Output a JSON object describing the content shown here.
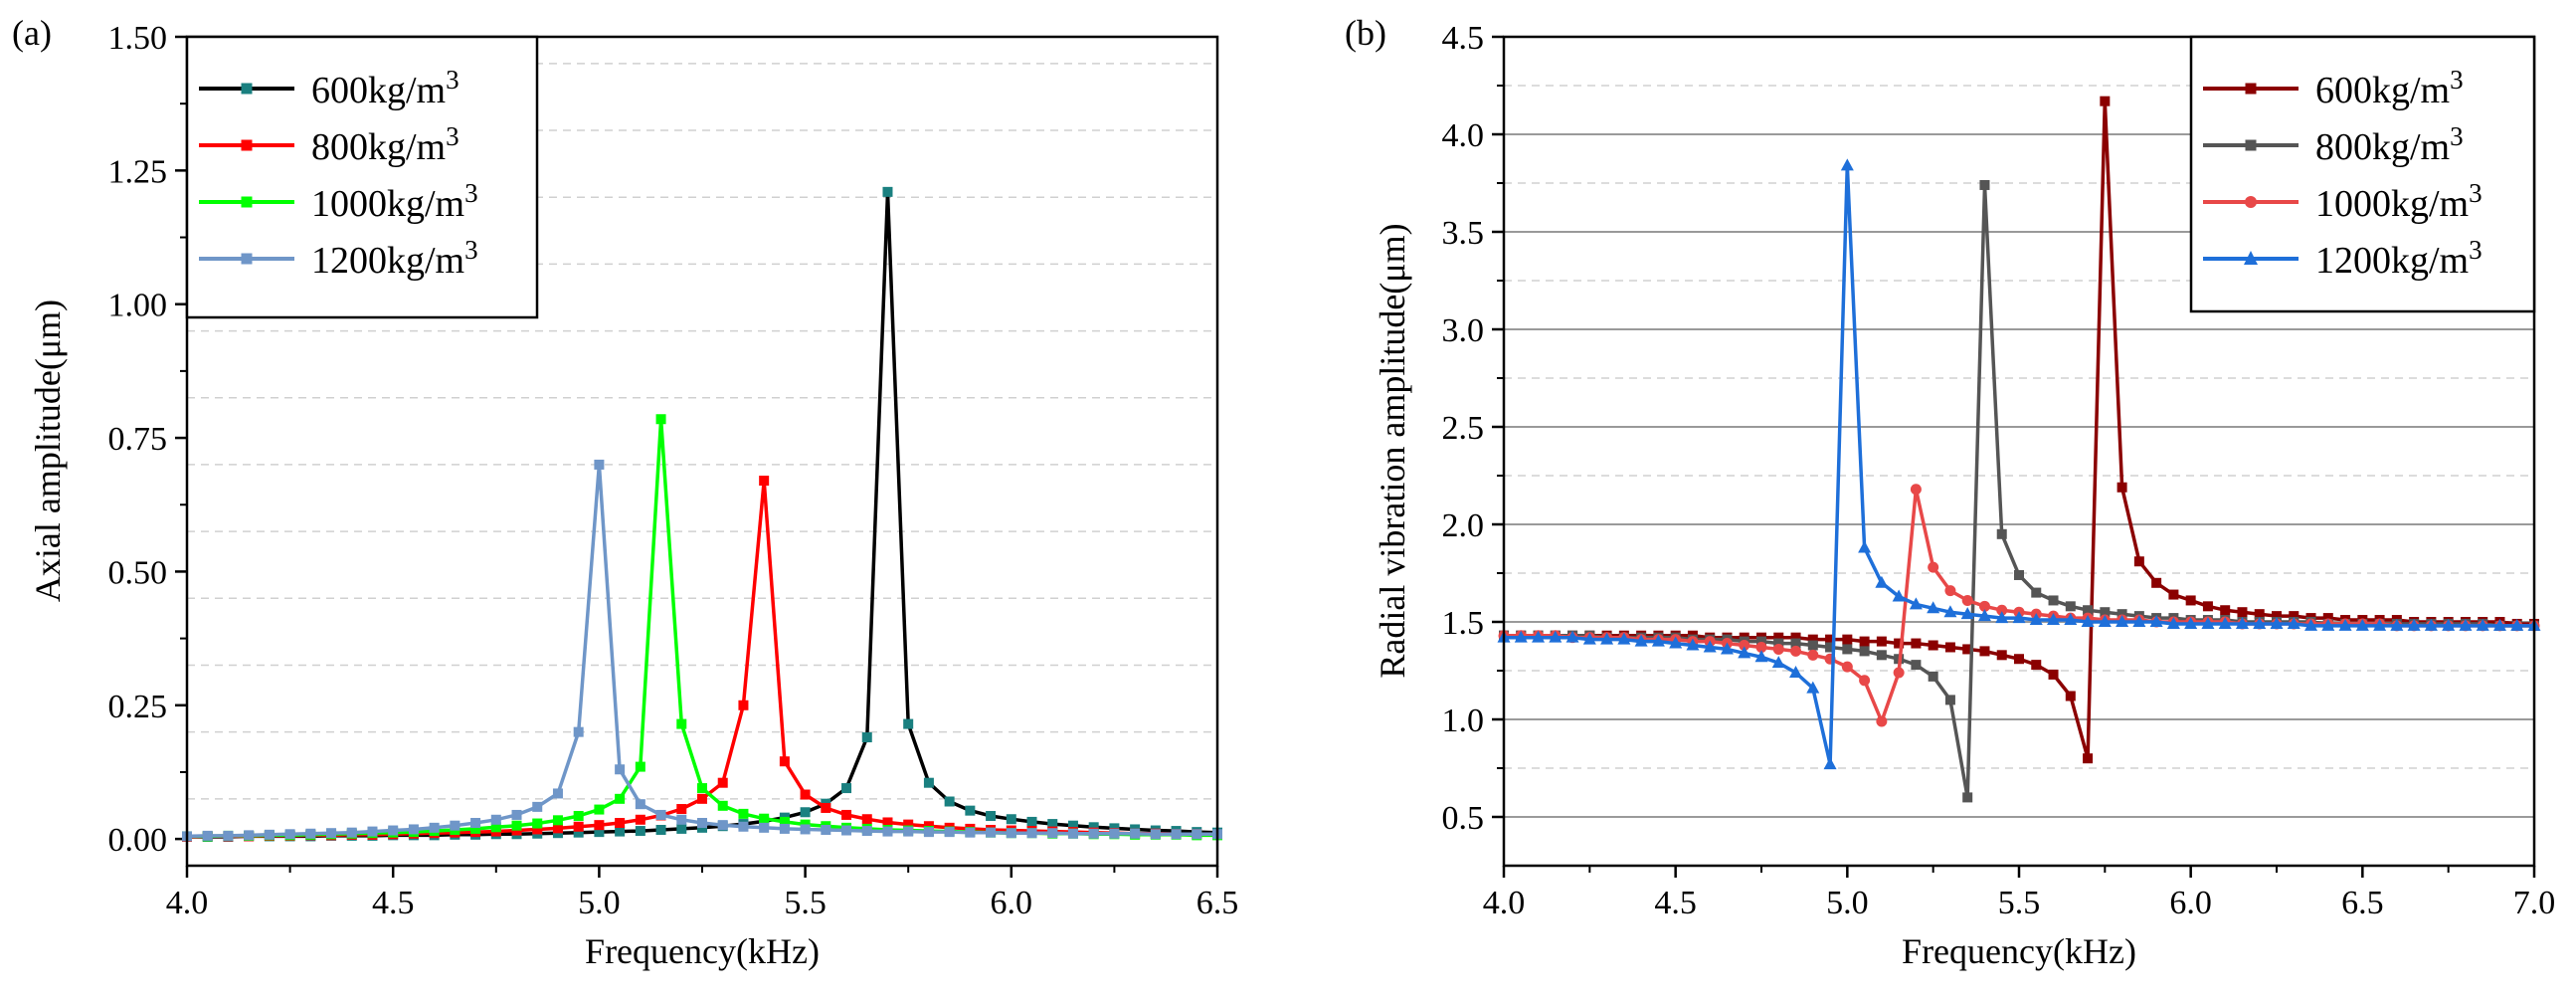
{
  "chart_data": [
    {
      "type": "line",
      "panel_label": "(a)",
      "title": "",
      "xlabel": "Frequency(kHz)",
      "ylabel": "Axial amplitude(μm)",
      "xlim": [
        4.0,
        6.5
      ],
      "ylim": [
        -0.05,
        1.5
      ],
      "xticks": [
        "4.0",
        "4.5",
        "5.0",
        "5.5",
        "6.0",
        "6.5"
      ],
      "yticks": [
        "0.00",
        "0.25",
        "0.50",
        "0.75",
        "1.00",
        "1.25",
        "1.50"
      ],
      "legend_position": "top-left",
      "legend": [
        "600kg/m",
        "800kg/m",
        "1000kg/m",
        "1200kg/m"
      ],
      "legend_superscript": "3",
      "series": [
        {
          "name": "600kg/m3",
          "color": "#000000",
          "marker_color": "#1a8080",
          "marker": "square",
          "x": [
            4.0,
            4.05,
            4.1,
            4.15,
            4.2,
            4.25,
            4.3,
            4.35,
            4.4,
            4.45,
            4.5,
            4.55,
            4.6,
            4.65,
            4.7,
            4.75,
            4.8,
            4.85,
            4.9,
            4.95,
            5.0,
            5.05,
            5.1,
            5.15,
            5.2,
            5.25,
            5.3,
            5.35,
            5.4,
            5.45,
            5.5,
            5.55,
            5.6,
            5.65,
            5.7,
            5.75,
            5.8,
            5.85,
            5.9,
            5.95,
            6.0,
            6.05,
            6.1,
            6.15,
            6.2,
            6.25,
            6.3,
            6.35,
            6.4,
            6.45,
            6.5
          ],
          "y": [
            0.004,
            0.004,
            0.004,
            0.005,
            0.005,
            0.005,
            0.005,
            0.006,
            0.006,
            0.006,
            0.007,
            0.007,
            0.007,
            0.008,
            0.008,
            0.009,
            0.009,
            0.01,
            0.011,
            0.012,
            0.013,
            0.014,
            0.015,
            0.017,
            0.019,
            0.021,
            0.024,
            0.028,
            0.033,
            0.04,
            0.05,
            0.066,
            0.095,
            0.19,
            1.21,
            0.215,
            0.105,
            0.07,
            0.053,
            0.043,
            0.037,
            0.032,
            0.028,
            0.025,
            0.022,
            0.02,
            0.018,
            0.016,
            0.015,
            0.013,
            0.012
          ]
        },
        {
          "name": "800kg/m3",
          "color": "#ff0000",
          "marker_color": "#ff0000",
          "marker": "square",
          "x": [
            4.0,
            4.05,
            4.1,
            4.15,
            4.2,
            4.25,
            4.3,
            4.35,
            4.4,
            4.45,
            4.5,
            4.55,
            4.6,
            4.65,
            4.7,
            4.75,
            4.8,
            4.85,
            4.9,
            4.95,
            5.0,
            5.05,
            5.1,
            5.15,
            5.2,
            5.25,
            5.3,
            5.35,
            5.4,
            5.45,
            5.5,
            5.55,
            5.6,
            5.65,
            5.7,
            5.75,
            5.8,
            5.85,
            5.9,
            5.95,
            6.0,
            6.05,
            6.1,
            6.15,
            6.2,
            6.25,
            6.3,
            6.35,
            6.4,
            6.45,
            6.5
          ],
          "y": [
            0.004,
            0.005,
            0.005,
            0.005,
            0.006,
            0.006,
            0.007,
            0.007,
            0.008,
            0.008,
            0.009,
            0.01,
            0.011,
            0.012,
            0.013,
            0.014,
            0.016,
            0.018,
            0.02,
            0.023,
            0.026,
            0.03,
            0.036,
            0.044,
            0.056,
            0.075,
            0.105,
            0.25,
            0.67,
            0.145,
            0.083,
            0.058,
            0.045,
            0.037,
            0.031,
            0.027,
            0.024,
            0.021,
            0.019,
            0.017,
            0.016,
            0.015,
            0.014,
            0.013,
            0.012,
            0.011,
            0.01,
            0.01,
            0.009,
            0.009,
            0.008
          ]
        },
        {
          "name": "1000kg/m3",
          "color": "#00ff00",
          "marker_color": "#00ff00",
          "marker": "square",
          "x": [
            4.0,
            4.05,
            4.1,
            4.15,
            4.2,
            4.25,
            4.3,
            4.35,
            4.4,
            4.45,
            4.5,
            4.55,
            4.6,
            4.65,
            4.7,
            4.75,
            4.8,
            4.85,
            4.9,
            4.95,
            5.0,
            5.05,
            5.1,
            5.15,
            5.2,
            5.25,
            5.3,
            5.35,
            5.4,
            5.45,
            5.5,
            5.55,
            5.6,
            5.65,
            5.7,
            5.75,
            5.8,
            5.85,
            5.9,
            5.95,
            6.0,
            6.05,
            6.1,
            6.15,
            6.2,
            6.25,
            6.3,
            6.35,
            6.4,
            6.45,
            6.5
          ],
          "y": [
            0.005,
            0.005,
            0.006,
            0.006,
            0.007,
            0.007,
            0.008,
            0.009,
            0.01,
            0.011,
            0.012,
            0.013,
            0.015,
            0.017,
            0.019,
            0.022,
            0.025,
            0.029,
            0.035,
            0.043,
            0.055,
            0.075,
            0.135,
            0.785,
            0.215,
            0.095,
            0.062,
            0.047,
            0.038,
            0.032,
            0.027,
            0.024,
            0.021,
            0.019,
            0.017,
            0.016,
            0.015,
            0.014,
            0.013,
            0.012,
            0.011,
            0.011,
            0.01,
            0.01,
            0.009,
            0.009,
            0.008,
            0.008,
            0.008,
            0.007,
            0.007
          ]
        },
        {
          "name": "1200kg/m3",
          "color": "#6f96c8",
          "marker_color": "#6f96c8",
          "marker": "square",
          "x": [
            4.0,
            4.05,
            4.1,
            4.15,
            4.2,
            4.25,
            4.3,
            4.35,
            4.4,
            4.45,
            4.5,
            4.55,
            4.6,
            4.65,
            4.7,
            4.75,
            4.8,
            4.85,
            4.9,
            4.95,
            5.0,
            5.05,
            5.1,
            5.15,
            5.2,
            5.25,
            5.3,
            5.35,
            5.4,
            5.45,
            5.5,
            5.55,
            5.6,
            5.65,
            5.7,
            5.75,
            5.8,
            5.85,
            5.9,
            5.95,
            6.0,
            6.05,
            6.1,
            6.15,
            6.2,
            6.25,
            6.3,
            6.35,
            6.4,
            6.45,
            6.5
          ],
          "y": [
            0.005,
            0.006,
            0.006,
            0.007,
            0.008,
            0.009,
            0.01,
            0.011,
            0.012,
            0.014,
            0.016,
            0.018,
            0.021,
            0.025,
            0.03,
            0.036,
            0.045,
            0.06,
            0.085,
            0.2,
            0.7,
            0.13,
            0.065,
            0.045,
            0.036,
            0.03,
            0.026,
            0.023,
            0.021,
            0.019,
            0.018,
            0.017,
            0.016,
            0.015,
            0.014,
            0.014,
            0.013,
            0.013,
            0.012,
            0.012,
            0.011,
            0.011,
            0.011,
            0.01,
            0.01,
            0.01,
            0.01,
            0.009,
            0.009,
            0.009,
            0.009
          ]
        }
      ]
    },
    {
      "type": "line",
      "panel_label": "(b)",
      "title": "",
      "xlabel": "Frequency(kHz)",
      "ylabel": "Radial vibration amplitude(μm)",
      "xlim": [
        4.0,
        7.0
      ],
      "ylim": [
        0.25,
        4.5
      ],
      "xticks": [
        "4.0",
        "4.5",
        "5.0",
        "5.5",
        "6.0",
        "6.5",
        "7.0"
      ],
      "yticks": [
        "0.5",
        "1.0",
        "1.5",
        "2.0",
        "2.5",
        "3.0",
        "3.5",
        "4.0",
        "4.5"
      ],
      "legend_position": "top-right",
      "legend": [
        "600kg/m",
        "800kg/m",
        "1000kg/m",
        "1200kg/m"
      ],
      "legend_superscript": "3",
      "series": [
        {
          "name": "600kg/m3",
          "color": "#8b0000",
          "marker_color": "#8b0000",
          "marker": "square",
          "x": [
            4.0,
            4.05,
            4.1,
            4.15,
            4.2,
            4.25,
            4.3,
            4.35,
            4.4,
            4.45,
            4.5,
            4.55,
            4.6,
            4.65,
            4.7,
            4.75,
            4.8,
            4.85,
            4.9,
            4.95,
            5.0,
            5.05,
            5.1,
            5.15,
            5.2,
            5.25,
            5.3,
            5.35,
            5.4,
            5.45,
            5.5,
            5.55,
            5.6,
            5.65,
            5.7,
            5.75,
            5.8,
            5.85,
            5.9,
            5.95,
            6.0,
            6.05,
            6.1,
            6.15,
            6.2,
            6.25,
            6.3,
            6.35,
            6.4,
            6.45,
            6.5,
            6.55,
            6.6,
            6.65,
            6.7,
            6.75,
            6.8,
            6.85,
            6.9,
            6.95,
            7.0
          ],
          "y": [
            1.43,
            1.43,
            1.43,
            1.43,
            1.43,
            1.43,
            1.43,
            1.43,
            1.43,
            1.43,
            1.43,
            1.43,
            1.42,
            1.42,
            1.42,
            1.42,
            1.42,
            1.42,
            1.41,
            1.41,
            1.41,
            1.4,
            1.4,
            1.39,
            1.39,
            1.38,
            1.37,
            1.36,
            1.35,
            1.33,
            1.31,
            1.28,
            1.23,
            1.12,
            0.8,
            4.17,
            2.19,
            1.81,
            1.7,
            1.64,
            1.61,
            1.58,
            1.56,
            1.55,
            1.54,
            1.53,
            1.53,
            1.52,
            1.52,
            1.51,
            1.51,
            1.51,
            1.51,
            1.5,
            1.5,
            1.5,
            1.5,
            1.5,
            1.5,
            1.49,
            1.49
          ]
        },
        {
          "name": "800kg/m3",
          "color": "#555555",
          "marker_color": "#555555",
          "marker": "square",
          "x": [
            4.0,
            4.05,
            4.1,
            4.15,
            4.2,
            4.25,
            4.3,
            4.35,
            4.4,
            4.45,
            4.5,
            4.55,
            4.6,
            4.65,
            4.7,
            4.75,
            4.8,
            4.85,
            4.9,
            4.95,
            5.0,
            5.05,
            5.1,
            5.15,
            5.2,
            5.25,
            5.3,
            5.35,
            5.4,
            5.45,
            5.5,
            5.55,
            5.6,
            5.65,
            5.7,
            5.75,
            5.8,
            5.85,
            5.9,
            5.95,
            6.0,
            6.05,
            6.1,
            6.15,
            6.2,
            6.25,
            6.3,
            6.35,
            6.4,
            6.45,
            6.5,
            6.55,
            6.6,
            6.65,
            6.7,
            6.75,
            6.8,
            6.85,
            6.9,
            6.95,
            7.0
          ],
          "y": [
            1.43,
            1.43,
            1.43,
            1.43,
            1.43,
            1.43,
            1.42,
            1.42,
            1.42,
            1.42,
            1.42,
            1.41,
            1.41,
            1.41,
            1.4,
            1.4,
            1.39,
            1.39,
            1.38,
            1.37,
            1.36,
            1.35,
            1.33,
            1.31,
            1.28,
            1.22,
            1.1,
            0.6,
            3.74,
            1.95,
            1.74,
            1.65,
            1.61,
            1.58,
            1.56,
            1.55,
            1.54,
            1.53,
            1.52,
            1.52,
            1.51,
            1.51,
            1.51,
            1.5,
            1.5,
            1.5,
            1.5,
            1.5,
            1.49,
            1.49,
            1.49,
            1.49,
            1.49,
            1.49,
            1.49,
            1.49,
            1.49,
            1.49,
            1.48,
            1.48,
            1.48
          ]
        },
        {
          "name": "1000kg/m3",
          "color": "#e84848",
          "marker_color": "#e84848",
          "marker": "circle",
          "x": [
            4.0,
            4.05,
            4.1,
            4.15,
            4.2,
            4.25,
            4.3,
            4.35,
            4.4,
            4.45,
            4.5,
            4.55,
            4.6,
            4.65,
            4.7,
            4.75,
            4.8,
            4.85,
            4.9,
            4.95,
            5.0,
            5.05,
            5.1,
            5.15,
            5.2,
            5.25,
            5.3,
            5.35,
            5.4,
            5.45,
            5.5,
            5.55,
            5.6,
            5.65,
            5.7,
            5.75,
            5.8,
            5.85,
            5.9,
            5.95,
            6.0,
            6.05,
            6.1,
            6.15,
            6.2,
            6.25,
            6.3,
            6.35,
            6.4,
            6.45,
            6.5,
            6.55,
            6.6,
            6.65,
            6.7,
            6.75,
            6.8,
            6.85,
            6.9,
            6.95,
            7.0
          ],
          "y": [
            1.43,
            1.43,
            1.43,
            1.43,
            1.42,
            1.42,
            1.42,
            1.42,
            1.41,
            1.41,
            1.41,
            1.4,
            1.4,
            1.39,
            1.38,
            1.37,
            1.36,
            1.35,
            1.33,
            1.31,
            1.27,
            1.2,
            0.99,
            1.24,
            2.18,
            1.78,
            1.66,
            1.61,
            1.58,
            1.56,
            1.55,
            1.54,
            1.53,
            1.52,
            1.52,
            1.51,
            1.51,
            1.51,
            1.5,
            1.5,
            1.5,
            1.5,
            1.5,
            1.49,
            1.49,
            1.49,
            1.49,
            1.49,
            1.49,
            1.49,
            1.49,
            1.49,
            1.48,
            1.48,
            1.48,
            1.48,
            1.48,
            1.48,
            1.48,
            1.48,
            1.48
          ]
        },
        {
          "name": "1200kg/m3",
          "color": "#1e6fd9",
          "marker_color": "#1e6fd9",
          "marker": "triangle",
          "x": [
            4.0,
            4.05,
            4.1,
            4.15,
            4.2,
            4.25,
            4.3,
            4.35,
            4.4,
            4.45,
            4.5,
            4.55,
            4.6,
            4.65,
            4.7,
            4.75,
            4.8,
            4.85,
            4.9,
            4.95,
            5.0,
            5.05,
            5.1,
            5.15,
            5.2,
            5.25,
            5.3,
            5.35,
            5.4,
            5.45,
            5.5,
            5.55,
            5.6,
            5.65,
            5.7,
            5.75,
            5.8,
            5.85,
            5.9,
            5.95,
            6.0,
            6.05,
            6.1,
            6.15,
            6.2,
            6.25,
            6.3,
            6.35,
            6.4,
            6.45,
            6.5,
            6.55,
            6.6,
            6.65,
            6.7,
            6.75,
            6.8,
            6.85,
            6.9,
            6.95,
            7.0
          ],
          "y": [
            1.42,
            1.42,
            1.42,
            1.42,
            1.42,
            1.41,
            1.41,
            1.41,
            1.4,
            1.4,
            1.39,
            1.38,
            1.37,
            1.36,
            1.34,
            1.32,
            1.29,
            1.24,
            1.16,
            0.77,
            3.84,
            1.88,
            1.7,
            1.63,
            1.59,
            1.57,
            1.55,
            1.54,
            1.53,
            1.52,
            1.52,
            1.51,
            1.51,
            1.51,
            1.5,
            1.5,
            1.5,
            1.5,
            1.5,
            1.49,
            1.49,
            1.49,
            1.49,
            1.49,
            1.49,
            1.49,
            1.49,
            1.48,
            1.48,
            1.48,
            1.48,
            1.48,
            1.48,
            1.48,
            1.48,
            1.48,
            1.48,
            1.48,
            1.48,
            1.48,
            1.48
          ]
        }
      ]
    }
  ]
}
